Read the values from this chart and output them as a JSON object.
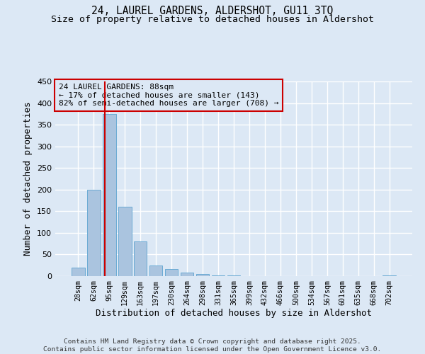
{
  "title": "24, LAUREL GARDENS, ALDERSHOT, GU11 3TQ",
  "subtitle": "Size of property relative to detached houses in Aldershot",
  "xlabel": "Distribution of detached houses by size in Aldershot",
  "ylabel": "Number of detached properties",
  "bar_values": [
    20,
    200,
    375,
    160,
    80,
    25,
    16,
    8,
    5,
    2,
    1,
    0,
    0,
    0,
    0,
    0,
    0,
    0,
    0,
    0,
    1
  ],
  "bar_labels": [
    "28sqm",
    "62sqm",
    "95sqm",
    "129sqm",
    "163sqm",
    "197sqm",
    "230sqm",
    "264sqm",
    "298sqm",
    "331sqm",
    "365sqm",
    "399sqm",
    "432sqm",
    "466sqm",
    "500sqm",
    "534sqm",
    "567sqm",
    "601sqm",
    "635sqm",
    "668sqm",
    "702sqm"
  ],
  "bar_color": "#aac4df",
  "bar_edge_color": "#6aaad4",
  "background_color": "#dce8f5",
  "grid_color": "#ffffff",
  "vline_x_index": 1.72,
  "vline_color": "#cc0000",
  "annotation_line1": "24 LAUREL GARDENS: 88sqm",
  "annotation_line2": "← 17% of detached houses are smaller (143)",
  "annotation_line3": "82% of semi-detached houses are larger (708) →",
  "annotation_box_color": "#cc0000",
  "ylim": [
    0,
    450
  ],
  "yticks": [
    0,
    50,
    100,
    150,
    200,
    250,
    300,
    350,
    400,
    450
  ],
  "footer_line1": "Contains HM Land Registry data © Crown copyright and database right 2025.",
  "footer_line2": "Contains public sector information licensed under the Open Government Licence v3.0.",
  "title_fontsize": 10.5,
  "subtitle_fontsize": 9.5,
  "xlabel_fontsize": 9,
  "ylabel_fontsize": 9,
  "annotation_fontsize": 8
}
